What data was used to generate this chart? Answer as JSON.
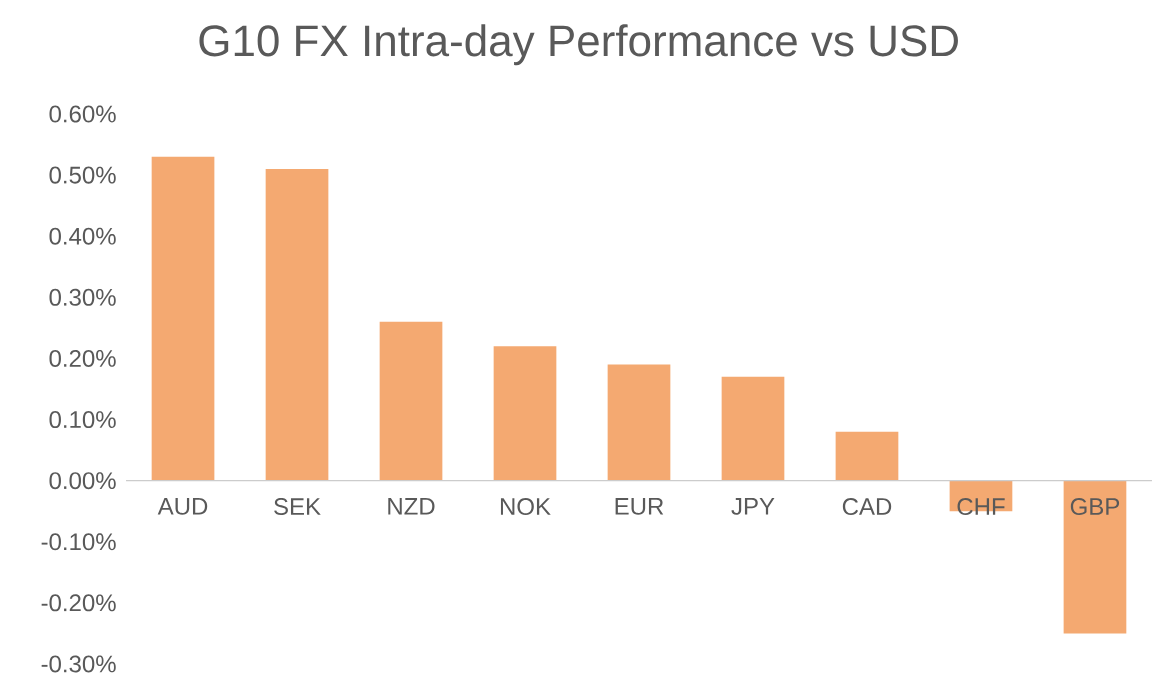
{
  "chart_data": {
    "type": "bar",
    "title": "G10 FX Intra-day Performance vs USD",
    "categories": [
      "AUD",
      "SEK",
      "NZD",
      "NOK",
      "EUR",
      "JPY",
      "CAD",
      "CHF",
      "GBP"
    ],
    "values": [
      0.53,
      0.51,
      0.26,
      0.22,
      0.19,
      0.17,
      0.08,
      -0.05,
      -0.25
    ],
    "color": "#f4a971",
    "ylim": [
      -0.3,
      0.6
    ],
    "yticks": [
      {
        "value": -0.3,
        "label": "-0.30%"
      },
      {
        "value": -0.2,
        "label": "-0.20%"
      },
      {
        "value": -0.1,
        "label": "-0.10%"
      },
      {
        "value": 0,
        "label": "0.00%"
      },
      {
        "value": 0.1,
        "label": "0.10%"
      },
      {
        "value": 0.2,
        "label": "0.20%"
      },
      {
        "value": 0.3,
        "label": "0.30%"
      },
      {
        "value": 0.4,
        "label": "0.40%"
      },
      {
        "value": 0.5,
        "label": "0.50%"
      },
      {
        "value": 0.6,
        "label": "0.60%"
      }
    ],
    "grid": false
  }
}
